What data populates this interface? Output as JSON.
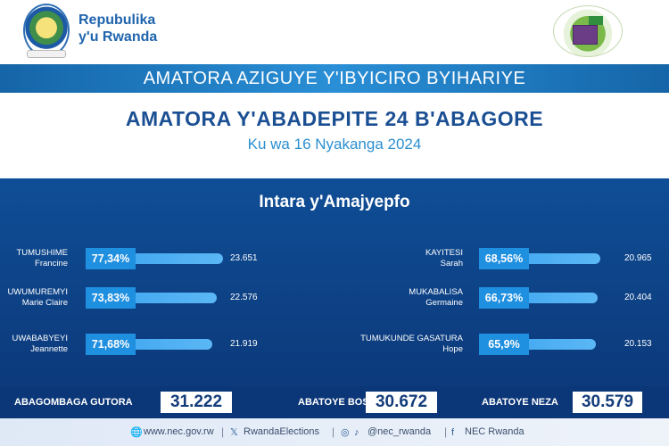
{
  "header": {
    "brand_line1": "Repubulika",
    "brand_line2": "y'u Rwanda"
  },
  "banner": {
    "top": "AMATORA AZIGUYE Y'IBYICIRO BYIHARIYE",
    "title": "AMATORA Y'ABADEPITE 24 B'ABAGORE",
    "date": "Ku wa 16 Nyakanga 2024"
  },
  "panel": {
    "region": "Intara y'Amajyepfo",
    "candidates_left": [
      {
        "first": "TUMUSHIME",
        "second": "Francine",
        "pct_label": "77,34%",
        "pct": 77.34,
        "votes": "23.651"
      },
      {
        "first": "UWUMUREMYI",
        "second": "Marie Claire",
        "pct_label": "73,83%",
        "pct": 73.83,
        "votes": "22.576"
      },
      {
        "first": "UWABABYEYI",
        "second": "Jeannette",
        "pct_label": "71,68%",
        "pct": 71.68,
        "votes": "21.919"
      }
    ],
    "candidates_right": [
      {
        "first": "KAYITESI",
        "second": "Sarah",
        "pct_label": "68,56%",
        "pct": 68.56,
        "votes": "20.965"
      },
      {
        "first": "MUKABALISA",
        "second": "Germaine",
        "pct_label": "66,73%",
        "pct": 66.73,
        "votes": "20.404"
      },
      {
        "first": "TUMUKUNDE GASATURA",
        "second": "Hope",
        "pct_label": "65,9%",
        "pct": 65.9,
        "votes": "20.153"
      }
    ]
  },
  "stats": {
    "registered_label": "ABAGOMBAGA GUTORA",
    "registered_value": "31.222",
    "voted_label": "ABATOYE BOSE",
    "voted_value": "30.672",
    "valid_label": "ABATOYE NEZA",
    "valid_value": "30.579"
  },
  "footer": {
    "website": "www.nec.gov.rw",
    "x": "RwandaElections",
    "social": "@nec_rwanda",
    "facebook": "NEC Rwanda"
  },
  "colors": {
    "primary": "#0f4e96",
    "accent": "#1f8fe0",
    "title": "#1b4f93"
  }
}
